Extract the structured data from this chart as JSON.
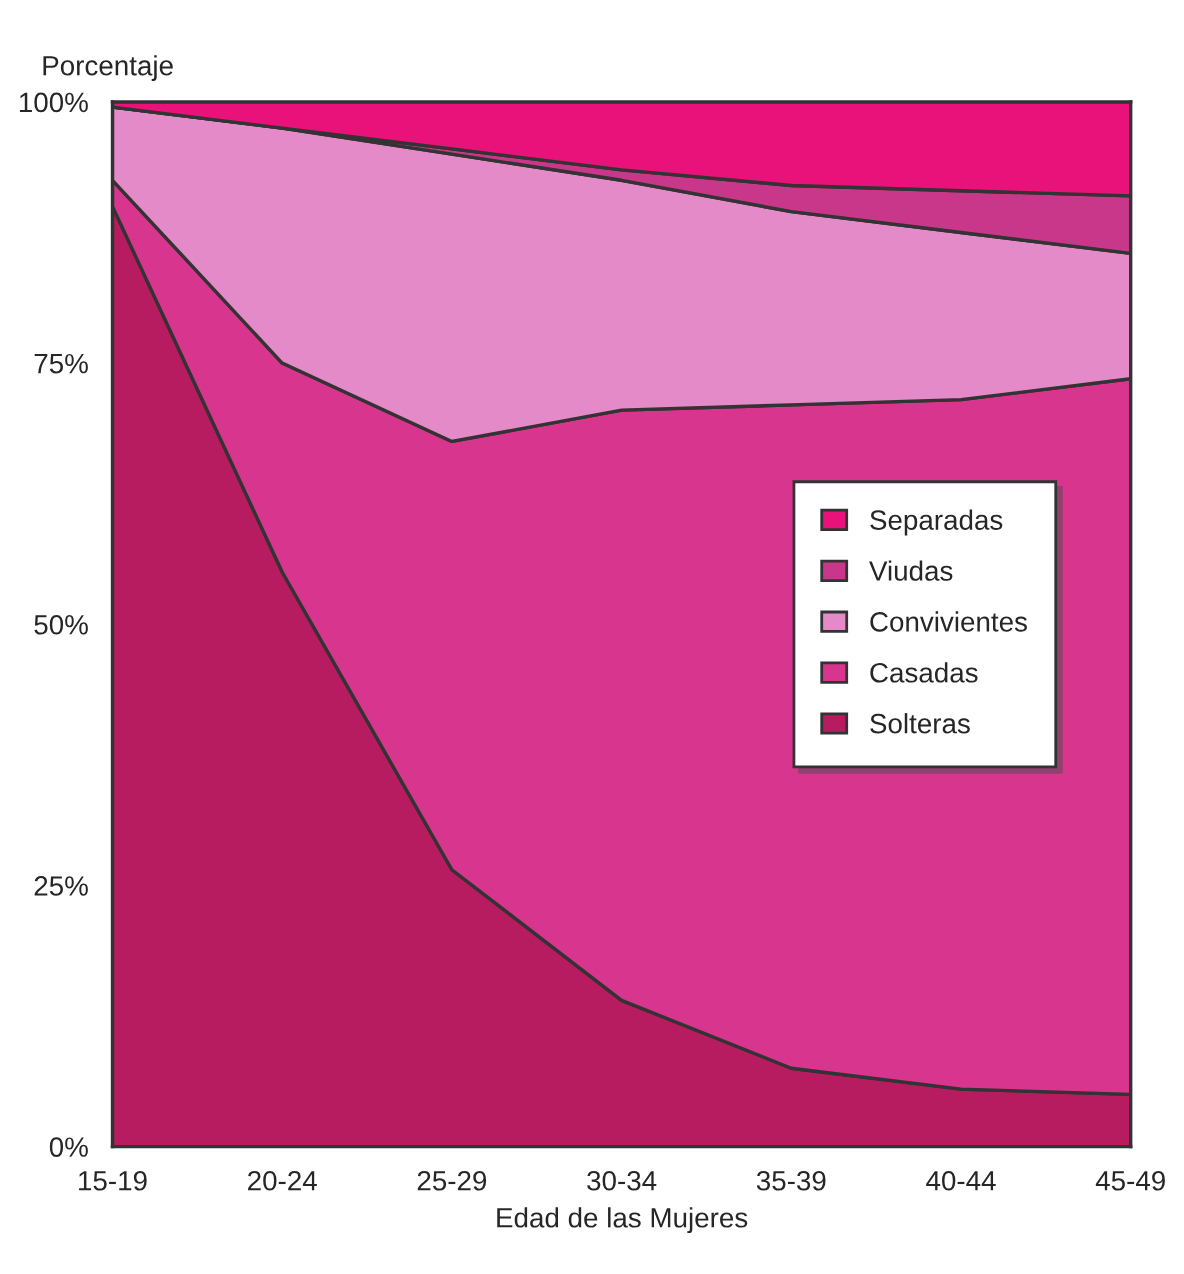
{
  "chart_data": {
    "type": "area",
    "stacked": true,
    "xlabel": "Edad de las Mujeres",
    "ylabel": "Porcentaje",
    "categories": [
      "15-19",
      "20-24",
      "25-29",
      "30-34",
      "35-39",
      "40-44",
      "45-49"
    ],
    "series": [
      {
        "name": "Solteras",
        "color": "#b81c60",
        "values": [
          90,
          55,
          26.5,
          14,
          7.5,
          5.5,
          5
        ]
      },
      {
        "name": "Casadas",
        "color": "#d8358f",
        "values": [
          2.5,
          20,
          41,
          56.5,
          63.5,
          66,
          68.5
        ]
      },
      {
        "name": "Convivientes",
        "color": "#e58ac8",
        "values": [
          7,
          22.5,
          27.5,
          22,
          18.5,
          16,
          12
        ]
      },
      {
        "name": "Viudas",
        "color": "#c8378a",
        "values": [
          0,
          0,
          0.5,
          1,
          2.5,
          4,
          5.5
        ]
      },
      {
        "name": "Separadas",
        "color": "#e8127a",
        "values": [
          0.5,
          2.5,
          4.5,
          6.5,
          8,
          8.5,
          9
        ]
      }
    ],
    "ylim": [
      0,
      100
    ],
    "yticks": [
      {
        "value": 0,
        "label": "0%"
      },
      {
        "value": 25,
        "label": "25%"
      },
      {
        "value": 50,
        "label": "50%"
      },
      {
        "value": 75,
        "label": "75%"
      },
      {
        "value": 100,
        "label": "100%"
      }
    ],
    "legend": "right"
  }
}
